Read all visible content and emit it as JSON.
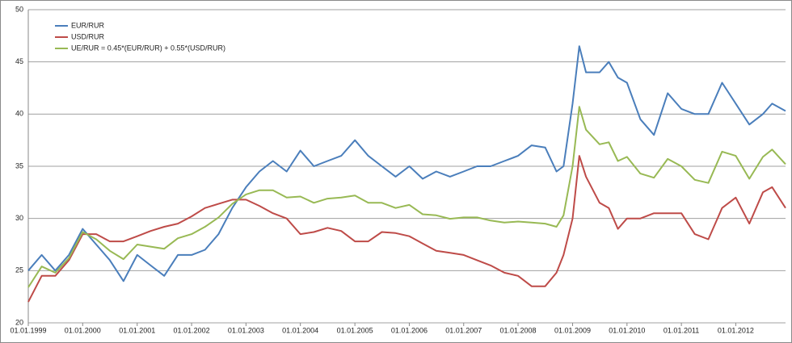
{
  "chart_data": {
    "type": "line",
    "x": [
      "1999-01-01",
      "1999-04-01",
      "1999-07-01",
      "1999-10-01",
      "2000-01-01",
      "2000-04-01",
      "2000-07-01",
      "2000-10-01",
      "2001-01-01",
      "2001-04-01",
      "2001-07-01",
      "2001-10-01",
      "2002-01-01",
      "2002-04-01",
      "2002-07-01",
      "2002-10-01",
      "2003-01-01",
      "2003-04-01",
      "2003-07-01",
      "2003-10-01",
      "2004-01-01",
      "2004-04-01",
      "2004-07-01",
      "2004-10-01",
      "2005-01-01",
      "2005-04-01",
      "2005-07-01",
      "2005-10-01",
      "2006-01-01",
      "2006-04-01",
      "2006-07-01",
      "2006-10-01",
      "2007-01-01",
      "2007-04-01",
      "2007-07-01",
      "2007-10-01",
      "2008-01-01",
      "2008-04-01",
      "2008-07-01",
      "2008-09-15",
      "2008-11-01",
      "2009-01-01",
      "2009-02-15",
      "2009-04-01",
      "2009-07-01",
      "2009-09-01",
      "2009-11-01",
      "2010-01-01",
      "2010-04-01",
      "2010-07-01",
      "2010-10-01",
      "2011-01-01",
      "2011-04-01",
      "2011-07-01",
      "2011-10-01",
      "2012-01-01",
      "2012-04-01",
      "2012-07-01",
      "2012-09-01",
      "2012-11-30"
    ],
    "series": [
      {
        "name": "EUR/RUR",
        "color": "#4a7ebb",
        "values": [
          25.0,
          26.5,
          25.0,
          26.5,
          29.0,
          27.5,
          26.0,
          24.0,
          26.5,
          25.5,
          24.5,
          26.5,
          26.5,
          27.0,
          28.5,
          31.0,
          33.0,
          34.5,
          35.5,
          34.5,
          36.5,
          35.0,
          35.5,
          36.0,
          37.5,
          36.0,
          35.0,
          34.0,
          35.0,
          33.8,
          34.5,
          34.0,
          34.5,
          35.0,
          35.0,
          35.5,
          36.0,
          37.0,
          36.8,
          34.5,
          35.0,
          41.0,
          46.5,
          44.0,
          44.0,
          45.0,
          43.5,
          43.0,
          39.5,
          38.0,
          42.0,
          40.5,
          40.0,
          40.0,
          43.0,
          41.0,
          39.0,
          40.0,
          41.0,
          40.3
        ]
      },
      {
        "name": "USD/RUR",
        "color": "#be4b48",
        "values": [
          22.0,
          24.5,
          24.5,
          26.0,
          28.5,
          28.5,
          27.8,
          27.8,
          28.3,
          28.8,
          29.2,
          29.5,
          30.2,
          31.0,
          31.4,
          31.8,
          31.8,
          31.2,
          30.5,
          30.0,
          28.5,
          28.7,
          29.1,
          28.8,
          27.8,
          27.8,
          28.7,
          28.6,
          28.3,
          27.6,
          26.9,
          26.7,
          26.5,
          26.0,
          25.5,
          24.8,
          24.5,
          23.5,
          23.5,
          24.8,
          26.5,
          30.0,
          36.0,
          34.0,
          31.5,
          31.0,
          29.0,
          30.0,
          30.0,
          30.5,
          30.5,
          30.5,
          28.5,
          28.0,
          31.0,
          32.0,
          29.5,
          32.5,
          33.0,
          31.0
        ]
      },
      {
        "name": "UE/RUR = 0.45*(EUR/RUR) + 0.55*(USD/RUR)",
        "color": "#98b954",
        "values": [
          23.4,
          25.4,
          24.8,
          26.2,
          28.7,
          28.0,
          26.9,
          26.1,
          27.5,
          27.3,
          27.1,
          28.1,
          28.5,
          29.2,
          30.1,
          31.4,
          32.3,
          32.7,
          32.7,
          32.0,
          32.1,
          31.5,
          31.9,
          32.0,
          32.2,
          31.5,
          31.5,
          31.0,
          31.3,
          30.4,
          30.3,
          29.97,
          30.1,
          30.1,
          29.8,
          29.6,
          29.7,
          29.6,
          29.5,
          29.2,
          30.3,
          35.0,
          40.7,
          38.5,
          37.1,
          37.3,
          35.5,
          35.9,
          34.3,
          33.9,
          35.7,
          35.0,
          33.7,
          33.4,
          36.4,
          36.0,
          33.8,
          35.9,
          36.6,
          35.2
        ]
      }
    ],
    "xlim": [
      "1999-01-01",
      "2012-11-30"
    ],
    "xticks": [
      {
        "value": "1999-01-01",
        "label": "01.01.1999"
      },
      {
        "value": "2000-01-01",
        "label": "01.01.2000"
      },
      {
        "value": "2001-01-01",
        "label": "01.01.2001"
      },
      {
        "value": "2002-01-01",
        "label": "01.01.2002"
      },
      {
        "value": "2003-01-01",
        "label": "01.01.2003"
      },
      {
        "value": "2004-01-01",
        "label": "01.01.2004"
      },
      {
        "value": "2005-01-01",
        "label": "01.01.2005"
      },
      {
        "value": "2006-01-01",
        "label": "01.01.2006"
      },
      {
        "value": "2007-01-01",
        "label": "01.01.2007"
      },
      {
        "value": "2008-01-01",
        "label": "01.01.2008"
      },
      {
        "value": "2009-01-01",
        "label": "01.01.2009"
      },
      {
        "value": "2010-01-01",
        "label": "01.01.2010"
      },
      {
        "value": "2011-01-01",
        "label": "01.01.2011"
      },
      {
        "value": "2012-01-01",
        "label": "01.01.2012"
      }
    ],
    "ylim": [
      20,
      50
    ],
    "yticks": [
      20,
      25,
      30,
      35,
      40,
      45,
      50
    ],
    "grid": true,
    "legend": "upper-left"
  }
}
